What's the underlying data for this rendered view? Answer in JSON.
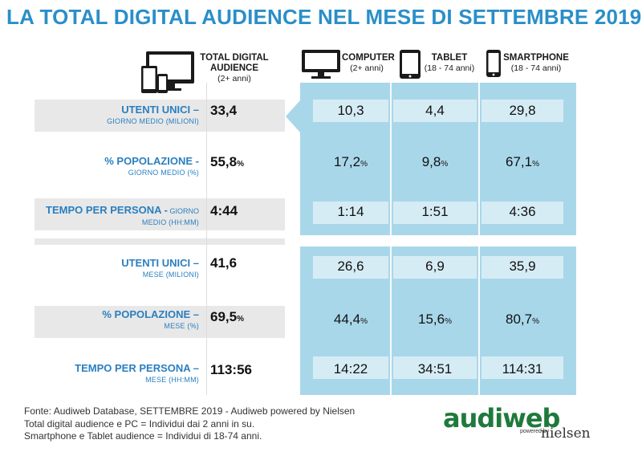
{
  "title": "LA TOTAL DIGITAL AUDIENCE NEL MESE DI SETTEMBRE 2019",
  "columns": {
    "total": {
      "label_line1": "TOTAL DIGITAL",
      "label_line2": "AUDIENCE",
      "sub": "(2+ anni)",
      "icon": "multi-device-icon"
    },
    "computer": {
      "label": "COMPUTER",
      "sub": "(2+ anni)",
      "icon": "monitor-icon"
    },
    "tablet": {
      "label": "TABLET",
      "sub": "(18 - 74 anni)",
      "icon": "tablet-icon"
    },
    "smartphone": {
      "label": "SMARTPHONE",
      "sub": "(18 - 74 anni)",
      "icon": "smartphone-icon"
    }
  },
  "rows": [
    {
      "label_main": "UTENTI UNICI –",
      "label_sub": "GIORNO MEDIO (MILIONI)",
      "total": "33,4",
      "total_unit": "",
      "computer": "10,3",
      "computer_unit": "",
      "tablet": "4,4",
      "tablet_unit": "",
      "smartphone": "29,8",
      "smartphone_unit": ""
    },
    {
      "label_main": "% POPOLAZIONE -",
      "label_sub": "GIORNO MEDIO (%)",
      "total": "55,8",
      "total_unit": "%",
      "computer": "17,2",
      "computer_unit": "%",
      "tablet": "9,8",
      "tablet_unit": "%",
      "smartphone": "67,1",
      "smartphone_unit": "%"
    },
    {
      "label_main": "TEMPO PER PERSONA -",
      "label_mini": " GIORNO",
      "label_sub": "MEDIO (HH:MM)",
      "total": "4:44",
      "total_unit": "",
      "computer": "1:14",
      "computer_unit": "",
      "tablet": "1:51",
      "tablet_unit": "",
      "smartphone": "4:36",
      "smartphone_unit": ""
    },
    {
      "label_main": "UTENTI UNICI –",
      "label_sub": "MESE (MILIONI)",
      "total": "41,6",
      "total_unit": "",
      "computer": "26,6",
      "computer_unit": "",
      "tablet": "6,9",
      "tablet_unit": "",
      "smartphone": "35,9",
      "smartphone_unit": ""
    },
    {
      "label_main": "% POPOLAZIONE –",
      "label_sub": "MESE (%)",
      "total": "69,5",
      "total_unit": "%",
      "computer": "44,4",
      "computer_unit": "%",
      "tablet": "15,6",
      "tablet_unit": "%",
      "smartphone": "80,7",
      "smartphone_unit": "%"
    },
    {
      "label_main": "TEMPO PER PERSONA –",
      "label_sub": "MESE (HH:MM)",
      "total": "113:56",
      "total_unit": "",
      "computer": "14:22",
      "computer_unit": "",
      "tablet": "34:51",
      "tablet_unit": "",
      "smartphone": "114:31",
      "smartphone_unit": ""
    }
  ],
  "footer": {
    "line1": "Fonte: Audiweb Database, SETTEMBRE 2019 - Audiweb powered by Nielsen",
    "line2": "Total digital audience e PC = Individui dai 2 anni in su.",
    "line3": "Smartphone e Tablet audience = Individui di 18-74 anni."
  },
  "logo": {
    "main": "audiweb",
    "powered": "powered by",
    "partner": "nielsen"
  },
  "colors": {
    "title": "#2a8fc8",
    "label": "#2a7fbf",
    "panel": "#a9d7ea",
    "shade": "#e8e8e8",
    "logo": "#1e7a3c"
  }
}
